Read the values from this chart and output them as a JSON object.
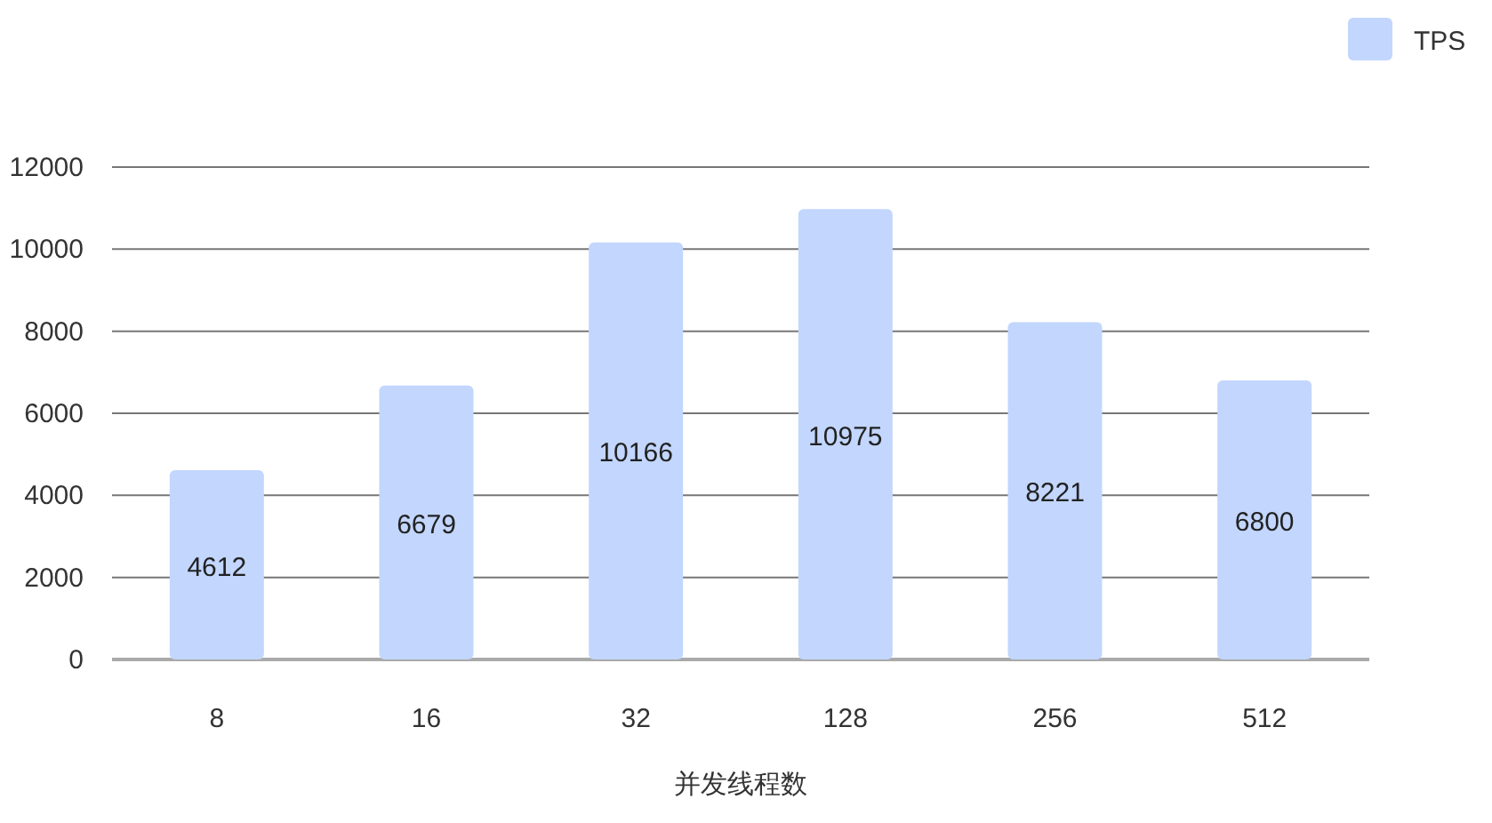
{
  "chart_data": {
    "type": "bar",
    "xlabel": "并发线程数",
    "categories": [
      "8",
      "16",
      "32",
      "128",
      "256",
      "512"
    ],
    "series": [
      {
        "name": "TPS",
        "color": "#c2d6fe",
        "values": [
          4612,
          6679,
          10166,
          10975,
          8221,
          6800
        ]
      }
    ],
    "ylim": [
      0,
      12000
    ],
    "yticks": [
      0,
      2000,
      4000,
      6000,
      8000,
      10000,
      12000
    ],
    "grid": "y",
    "legend": "top right",
    "data_labels": true
  }
}
